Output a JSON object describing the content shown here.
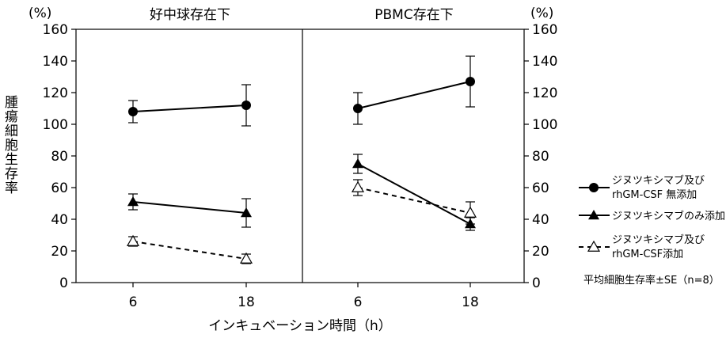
{
  "chart_data": {
    "type": "line",
    "ylabel": "腫瘍細胞生存率",
    "y_unit": "(%)",
    "xlabel": "インキュベーション時間（h）",
    "ylim": [
      0,
      160
    ],
    "yticks": [
      0,
      20,
      40,
      60,
      80,
      100,
      120,
      140,
      160
    ],
    "x_categories": [
      "6",
      "18"
    ],
    "footnote": "平均細胞生存率±SE（n=8）",
    "legend": [
      {
        "key": "none",
        "lines": [
          "ジヌツキシマブ及び",
          "rhGM-CSF 無添加"
        ],
        "marker": "circle",
        "line": "solid"
      },
      {
        "key": "dinu",
        "lines": [
          "ジヌツキシマブのみ添加"
        ],
        "marker": "triangle",
        "line": "solid"
      },
      {
        "key": "both",
        "lines": [
          "ジヌツキシマブ及び",
          "rhGM-CSF添加"
        ],
        "marker": "open-triangle",
        "line": "dashed"
      }
    ],
    "panels": [
      {
        "title": "好中球存在下",
        "series": [
          {
            "key": "none",
            "values": [
              108,
              112
            ],
            "se": [
              7,
              13
            ]
          },
          {
            "key": "dinu",
            "values": [
              51,
              44
            ],
            "se": [
              5,
              9
            ]
          },
          {
            "key": "both",
            "values": [
              26,
              15
            ],
            "se": [
              3,
              3
            ]
          }
        ]
      },
      {
        "title": "PBMC存在下",
        "series": [
          {
            "key": "none",
            "values": [
              110,
              127
            ],
            "se": [
              10,
              16
            ]
          },
          {
            "key": "dinu",
            "values": [
              75,
              37
            ],
            "se": [
              6,
              4
            ]
          },
          {
            "key": "both",
            "values": [
              60,
              44
            ],
            "se": [
              5,
              7
            ]
          }
        ]
      }
    ]
  }
}
